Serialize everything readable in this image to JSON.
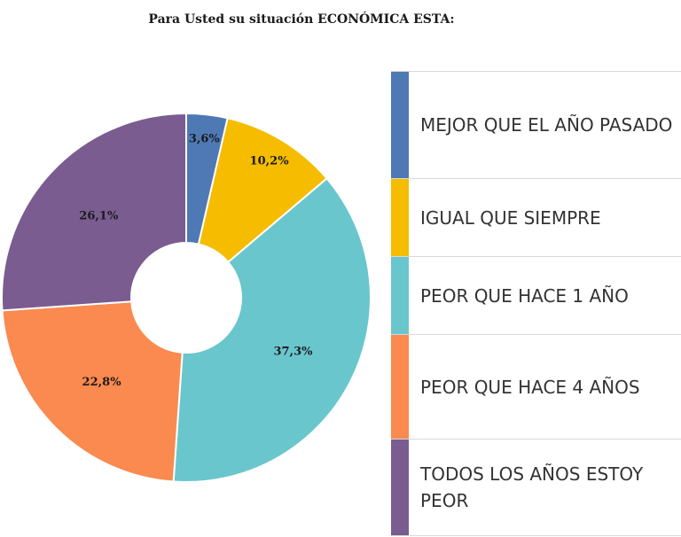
{
  "title": "Para Usted su situación ECONÓMICA ESTA:",
  "chart_data": {
    "type": "pie",
    "donut": true,
    "slices": [
      {
        "label": "MEJOR QUE EL AÑO PASADO",
        "value": 3.6,
        "display": "3,6%",
        "color": "#4e79b4"
      },
      {
        "label": "IGUAL QUE SIEMPRE",
        "value": 10.2,
        "display": "10,2%",
        "color": "#f5bc00"
      },
      {
        "label": "PEOR QUE HACE 1 AÑO",
        "value": 37.3,
        "display": "37,3%",
        "color": "#6ac6cd"
      },
      {
        "label": "PEOR QUE HACE 4 AÑOS",
        "value": 22.8,
        "display": "22,8%",
        "color": "#fa8a4f"
      },
      {
        "label": "TODOS LOS AÑOS ESTOY PEOR",
        "value": 26.1,
        "display": "26,1%",
        "color": "#7a5c91"
      }
    ],
    "legend_position": "right"
  }
}
